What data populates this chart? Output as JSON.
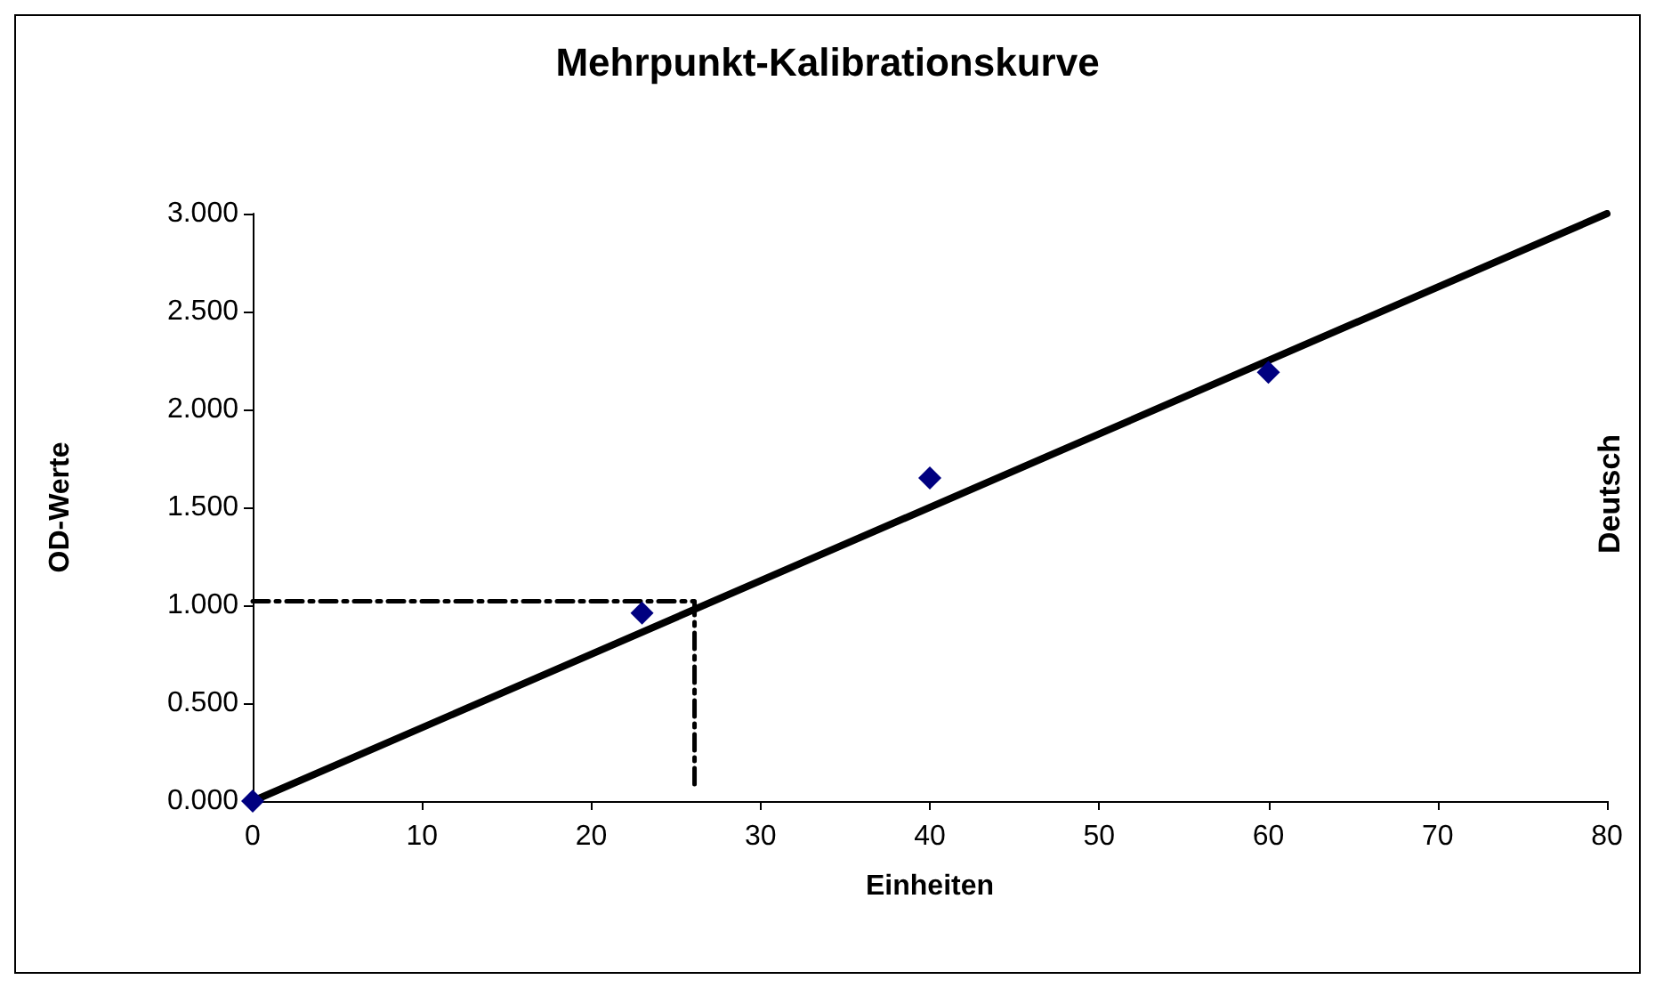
{
  "chart_data": {
    "type": "scatter",
    "title": "Mehrpunkt-Kalibrationskurve",
    "xlabel": "Einheiten",
    "ylabel": "OD-Werte",
    "annotations": [
      "Deutsch"
    ],
    "xlim": [
      0,
      80
    ],
    "xticks": [
      0,
      10,
      20,
      30,
      40,
      50,
      60,
      70,
      80
    ],
    "ylim": [
      0,
      3
    ],
    "yticks": [
      {
        "value": 0,
        "label": "0.000"
      },
      {
        "value": 0.5,
        "label": "0.500"
      },
      {
        "value": 1,
        "label": "1.000"
      },
      {
        "value": 1.5,
        "label": "1.500"
      },
      {
        "value": 2,
        "label": "2.000"
      },
      {
        "value": 2.5,
        "label": "2.500"
      },
      {
        "value": 3,
        "label": "3.000"
      }
    ],
    "grid": false,
    "series": [
      {
        "color": "#000080",
        "marker": "diamond",
        "x": [
          0,
          23,
          40,
          60
        ],
        "values": [
          0,
          0.96,
          1.65,
          2.19
        ]
      },
      {
        "type": "line",
        "color": "#000000",
        "marker": "none",
        "line_style": "solid",
        "x": [
          0,
          80
        ],
        "values": [
          0,
          3
        ]
      },
      {
        "type": "line",
        "color": "#000000",
        "marker": "none",
        "line_style": "dashed",
        "x": [
          0,
          26.1,
          26.1
        ],
        "values": [
          1.02,
          1.02,
          0.08
        ]
      }
    ]
  }
}
